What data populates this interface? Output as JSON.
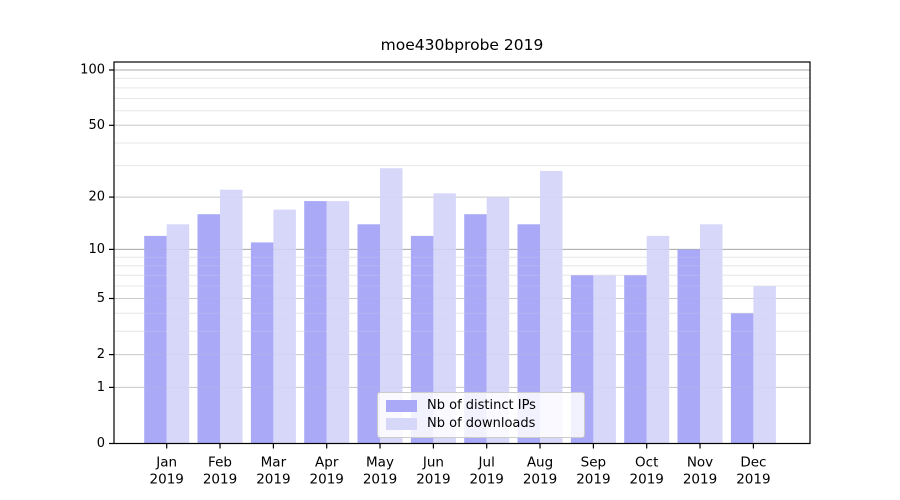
{
  "chart_data": {
    "type": "bar",
    "title": "moe430bprobe 2019",
    "categories": [
      "Jan",
      "Feb",
      "Mar",
      "Apr",
      "May",
      "Jun",
      "Jul",
      "Aug",
      "Sep",
      "Oct",
      "Nov",
      "Dec"
    ],
    "category_year": "2019",
    "series": [
      {
        "name": "Nb of distinct IPs",
        "color": "#a9a9f7",
        "values": [
          12,
          16,
          11,
          19,
          14,
          12,
          16,
          14,
          7,
          7,
          10,
          4
        ]
      },
      {
        "name": "Nb of downloads",
        "color": "#d7d7fa",
        "values": [
          14,
          22,
          17,
          19,
          29,
          21,
          20,
          28,
          7,
          12,
          14,
          6
        ]
      }
    ],
    "xlabel": "",
    "ylabel": "",
    "yscale": "log10(value+1)",
    "yticks": [
      0,
      1,
      2,
      5,
      10,
      20,
      50,
      100
    ],
    "ylim": [
      0,
      111
    ],
    "grid": {
      "enabled": true,
      "minor_lines": [
        3,
        4,
        6,
        7,
        8,
        9,
        30,
        40,
        60,
        70,
        80,
        90
      ],
      "decade_lines": [
        10,
        100
      ],
      "minor_color": "#e7e7e7",
      "major_color": "#c9c9c9",
      "decade_color": "#a8a8a8"
    },
    "axis_color": "#000000",
    "legend_position": "lower center"
  },
  "legend": {
    "items": [
      {
        "label": "Nb of distinct IPs"
      },
      {
        "label": "Nb of downloads"
      }
    ]
  }
}
